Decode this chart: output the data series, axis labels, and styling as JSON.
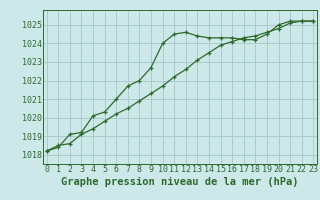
{
  "title": "Graphe pression niveau de la mer (hPa)",
  "background_color": "#cce8e8",
  "grid_color": "#aacccc",
  "line_color": "#2d6a2d",
  "x_hours": [
    0,
    1,
    2,
    3,
    4,
    5,
    6,
    7,
    8,
    9,
    10,
    11,
    12,
    13,
    14,
    15,
    16,
    17,
    18,
    19,
    20,
    21,
    22,
    23
  ],
  "series1": [
    1018.2,
    1018.4,
    1019.1,
    1019.2,
    1020.1,
    1020.3,
    1021.0,
    1021.7,
    1022.0,
    1022.7,
    1024.0,
    1024.5,
    1024.6,
    1024.4,
    1024.3,
    1024.3,
    1024.3,
    1024.2,
    1024.2,
    1024.5,
    1025.0,
    1025.2,
    1025.2,
    1025.2
  ],
  "series2": [
    1018.2,
    1018.5,
    1018.6,
    1019.1,
    1019.4,
    1019.8,
    1020.2,
    1020.5,
    1020.9,
    1021.3,
    1021.7,
    1022.2,
    1022.6,
    1023.1,
    1023.5,
    1023.9,
    1024.1,
    1024.3,
    1024.4,
    1024.6,
    1024.8,
    1025.1,
    1025.2,
    1025.2
  ],
  "ylim": [
    1017.5,
    1025.8
  ],
  "yticks": [
    1018,
    1019,
    1020,
    1021,
    1022,
    1023,
    1024,
    1025
  ],
  "xticks": [
    0,
    1,
    2,
    3,
    4,
    5,
    6,
    7,
    8,
    9,
    10,
    11,
    12,
    13,
    14,
    15,
    16,
    17,
    18,
    19,
    20,
    21,
    22,
    23
  ],
  "xlim": [
    -0.3,
    23.3
  ],
  "title_fontsize": 7.5,
  "tick_fontsize": 6.0,
  "marker": "+"
}
